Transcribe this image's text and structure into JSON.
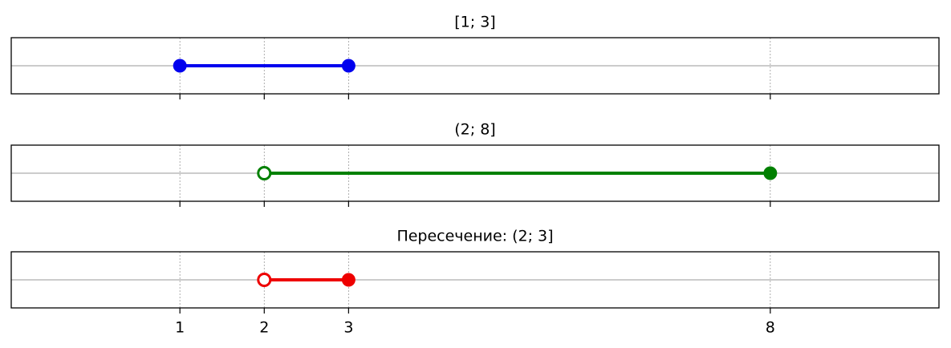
{
  "chart_data": [
    {
      "type": "interval",
      "title": "[1; 3]",
      "x": [
        1,
        3
      ],
      "closed": [
        true,
        true
      ],
      "color": "#0000ee",
      "xlim": [
        -1,
        10
      ],
      "xticks": [
        1,
        2,
        3,
        8
      ],
      "grid": true,
      "show_tick_labels": false
    },
    {
      "type": "interval",
      "title": "(2; 8]",
      "x": [
        2,
        8
      ],
      "closed": [
        false,
        true
      ],
      "color": "#008000",
      "xlim": [
        -1,
        10
      ],
      "xticks": [
        1,
        2,
        3,
        8
      ],
      "grid": true,
      "show_tick_labels": false
    },
    {
      "type": "interval",
      "title": "Пересечение: (2; 3]",
      "x": [
        2,
        3
      ],
      "closed": [
        false,
        true
      ],
      "color": "#ee0000",
      "xlim": [
        -1,
        10
      ],
      "xticks": [
        1,
        2,
        3,
        8
      ],
      "grid": true,
      "show_tick_labels": true
    }
  ]
}
